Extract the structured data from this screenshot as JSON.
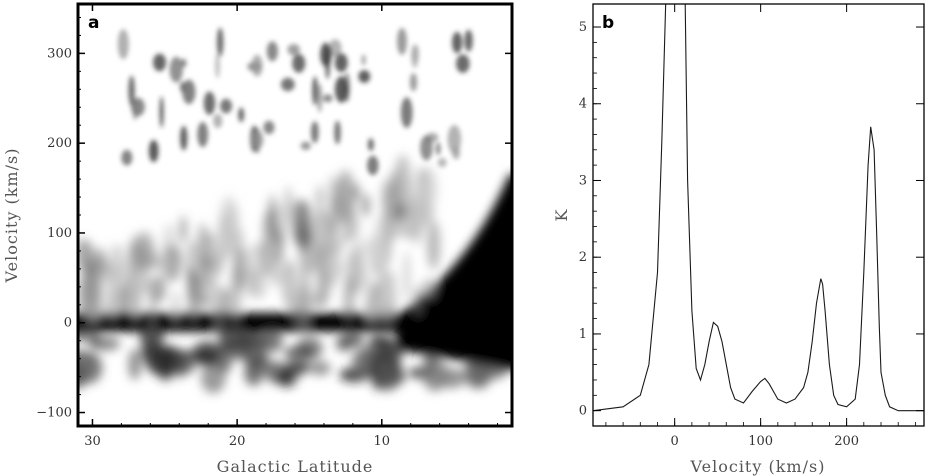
{
  "chart_data": [
    {
      "panel": "a",
      "type": "heatmap",
      "title": "",
      "xlabel": "Galactic Latitude",
      "ylabel": "Velocity (km/s)",
      "xlim": [
        31,
        1
      ],
      "ylim": [
        -115,
        355
      ],
      "xticks": [
        30,
        20,
        10
      ],
      "yticks": [
        -100,
        0,
        100,
        200,
        300
      ],
      "colormap": "grayscale (darker = stronger emission)",
      "features": [
        {
          "lat": [
            31,
            1
          ],
          "velocity": [
            -10,
            10
          ],
          "intensity": "saturated"
        },
        {
          "lat": [
            31,
            1
          ],
          "velocity": [
            -60,
            -10
          ],
          "intensity": "strong"
        },
        {
          "lat": [
            31,
            8
          ],
          "velocity": [
            20,
            160
          ],
          "intensity": "moderate"
        },
        {
          "lat": [
            8,
            1
          ],
          "velocity": [
            10,
            160
          ],
          "intensity": "saturated"
        },
        {
          "lat": [
            28,
            4
          ],
          "velocity": [
            150,
            320
          ],
          "intensity": "clumpy, moderate"
        }
      ]
    },
    {
      "panel": "b",
      "type": "line",
      "title": "",
      "xlabel": "Velocity (km/s)",
      "ylabel": "K",
      "xlim": [
        -95,
        290
      ],
      "ylim": [
        -0.2,
        5.3
      ],
      "xticks": [
        0,
        100,
        200
      ],
      "yticks": [
        0,
        1,
        2,
        3,
        4,
        5
      ],
      "series": [
        {
          "x": [
            -95,
            -60,
            -40,
            -30,
            -20,
            -15,
            -10,
            -5,
            0,
            5,
            10,
            12,
            15,
            20,
            25,
            30,
            35,
            40,
            45,
            50,
            55,
            60,
            65,
            70,
            80,
            90,
            100,
            105,
            110,
            115,
            120,
            130,
            140,
            150,
            155,
            160,
            165,
            170,
            172,
            175,
            180,
            185,
            190,
            200,
            210,
            215,
            220,
            225,
            228,
            230,
            232,
            235,
            238,
            240,
            245,
            250,
            260,
            275,
            290
          ],
          "y": [
            0.0,
            0.05,
            0.2,
            0.6,
            1.8,
            3.5,
            5.5,
            5.5,
            5.5,
            5.5,
            5.5,
            5.5,
            3.0,
            1.3,
            0.55,
            0.4,
            0.6,
            0.9,
            1.15,
            1.1,
            0.9,
            0.6,
            0.3,
            0.15,
            0.1,
            0.25,
            0.38,
            0.42,
            0.35,
            0.25,
            0.15,
            0.1,
            0.15,
            0.3,
            0.5,
            0.9,
            1.4,
            1.72,
            1.65,
            1.3,
            0.6,
            0.2,
            0.08,
            0.05,
            0.15,
            0.6,
            1.8,
            3.2,
            3.7,
            3.55,
            3.4,
            2.3,
            1.1,
            0.5,
            0.2,
            0.05,
            0.0,
            0.0,
            0.0
          ]
        }
      ]
    }
  ],
  "panels": {
    "a": {
      "letter": "a",
      "xlabel": "Galactic Latitude",
      "ylabel": "Velocity (km/s)",
      "xtick_labels": [
        "30",
        "20",
        "10"
      ],
      "ytick_labels": [
        "−100",
        "0",
        "100",
        "200",
        "300"
      ]
    },
    "b": {
      "letter": "b",
      "xlabel": "Velocity (km/s)",
      "ylabel": "K",
      "xtick_labels": [
        "0",
        "100",
        "200"
      ],
      "ytick_labels": [
        "0",
        "1",
        "2",
        "3",
        "4",
        "5"
      ]
    }
  },
  "colors": {
    "frame": "#000000",
    "ink": "#1a1a1a",
    "background": "#ffffff"
  }
}
